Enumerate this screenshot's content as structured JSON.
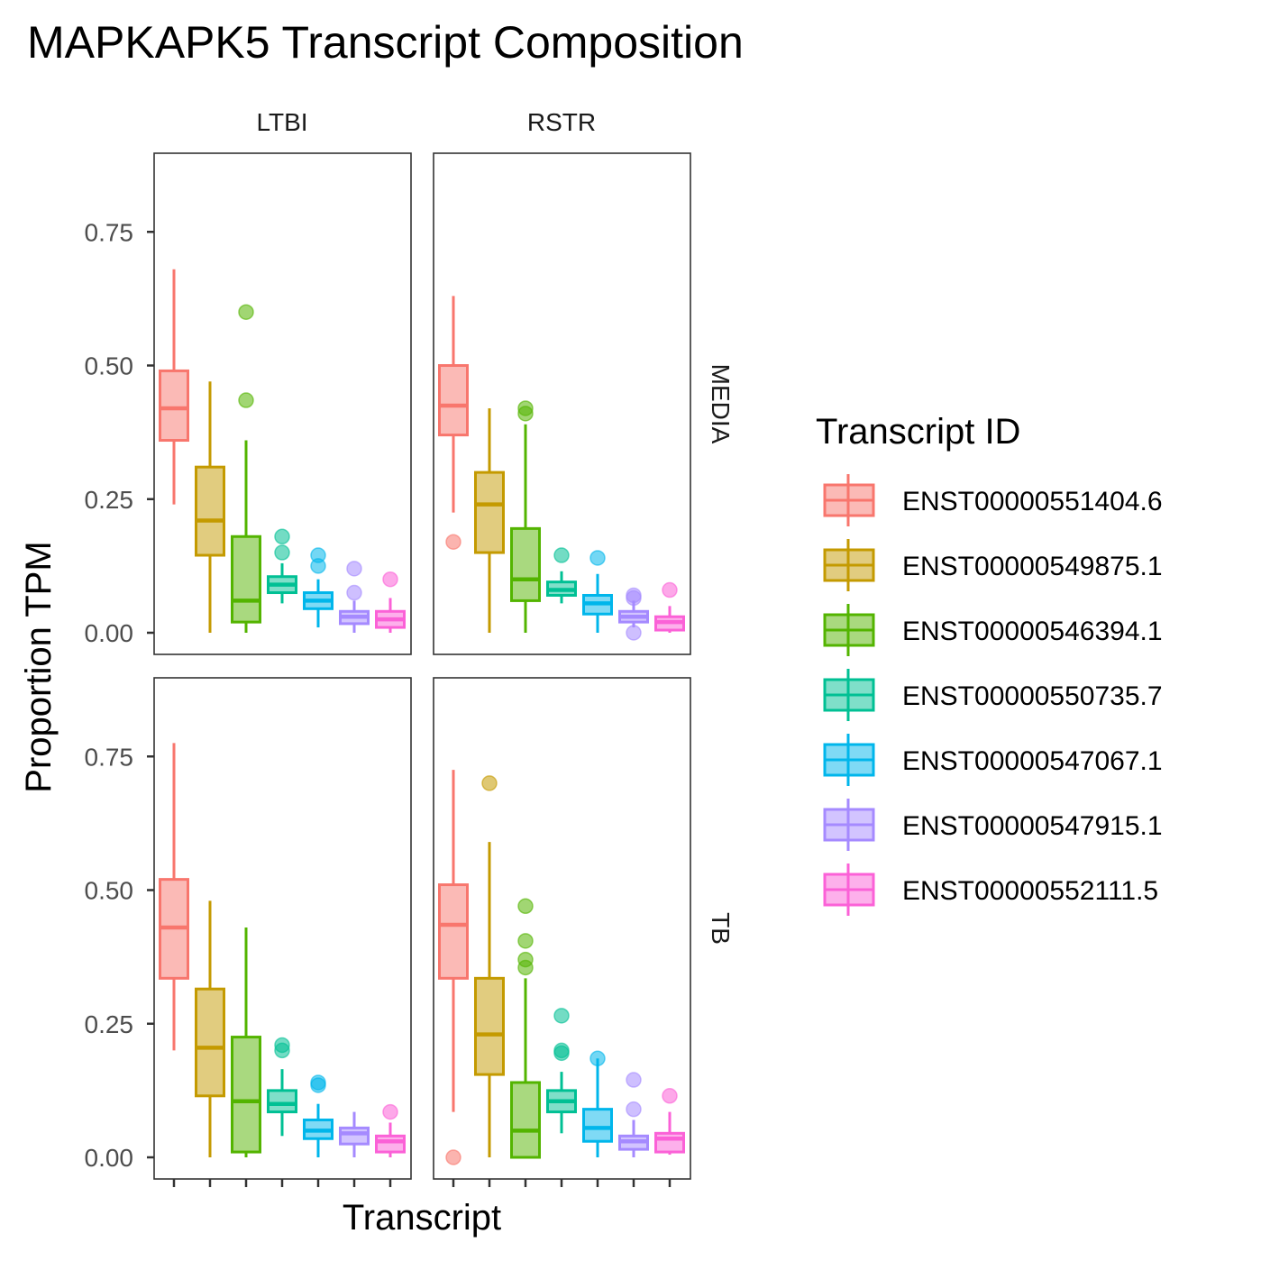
{
  "chart_data": {
    "type": "boxplot",
    "title": "MAPKAPK5 Transcript Composition",
    "xlabel": "Transcript",
    "ylabel": "Proportion TPM",
    "ylim": [
      -0.04,
      0.89
    ],
    "y_ticks": [
      "0.00",
      "0.25",
      "0.50",
      "0.75"
    ],
    "y_tick_values": [
      0,
      0.25,
      0.5,
      0.75
    ],
    "column_facets": [
      "LTBI",
      "RSTR"
    ],
    "row_facets": [
      "MEDIA",
      "TB"
    ],
    "legend": {
      "title": "Transcript ID",
      "position": "right",
      "entries": [
        {
          "label": "ENST00000551404.6",
          "color": "#F8766D"
        },
        {
          "label": "ENST00000549875.1",
          "color": "#C49A00"
        },
        {
          "label": "ENST00000546394.1",
          "color": "#53B400"
        },
        {
          "label": "ENST00000550735.7",
          "color": "#00C094"
        },
        {
          "label": "ENST00000547067.1",
          "color": "#00B6EB"
        },
        {
          "label": "ENST00000547915.1",
          "color": "#A58AFF"
        },
        {
          "label": "ENST00000552111.5",
          "color": "#FB61D7"
        }
      ]
    },
    "panels": [
      {
        "col": 0,
        "row": 0,
        "facet": "LTBI / MEDIA",
        "boxes": [
          {
            "min": 0.24,
            "q1": 0.36,
            "median": 0.42,
            "q3": 0.49,
            "max": 0.68,
            "outliers": []
          },
          {
            "min": 0.0,
            "q1": 0.145,
            "median": 0.21,
            "q3": 0.31,
            "max": 0.47,
            "outliers": []
          },
          {
            "min": 0.0,
            "q1": 0.02,
            "median": 0.06,
            "q3": 0.18,
            "max": 0.36,
            "outliers": [
              0.6,
              0.435
            ]
          },
          {
            "min": 0.055,
            "q1": 0.075,
            "median": 0.09,
            "q3": 0.105,
            "max": 0.13,
            "outliers": [
              0.18,
              0.15
            ]
          },
          {
            "min": 0.01,
            "q1": 0.045,
            "median": 0.06,
            "q3": 0.075,
            "max": 0.1,
            "outliers": [
              0.145,
              0.125
            ]
          },
          {
            "min": 0.0,
            "q1": 0.017,
            "median": 0.03,
            "q3": 0.04,
            "max": 0.06,
            "outliers": [
              0.12,
              0.075
            ]
          },
          {
            "min": 0.0,
            "q1": 0.01,
            "median": 0.025,
            "q3": 0.04,
            "max": 0.065,
            "outliers": [
              0.1
            ]
          }
        ]
      },
      {
        "col": 1,
        "row": 0,
        "facet": "RSTR / MEDIA",
        "boxes": [
          {
            "min": 0.225,
            "q1": 0.37,
            "median": 0.425,
            "q3": 0.5,
            "max": 0.63,
            "outliers": [
              0.17
            ]
          },
          {
            "min": 0.0,
            "q1": 0.15,
            "median": 0.24,
            "q3": 0.3,
            "max": 0.42,
            "outliers": []
          },
          {
            "min": 0.0,
            "q1": 0.06,
            "median": 0.1,
            "q3": 0.195,
            "max": 0.39,
            "outliers": [
              0.42,
              0.41
            ]
          },
          {
            "min": 0.055,
            "q1": 0.07,
            "median": 0.08,
            "q3": 0.095,
            "max": 0.115,
            "outliers": [
              0.145
            ]
          },
          {
            "min": 0.0,
            "q1": 0.035,
            "median": 0.055,
            "q3": 0.07,
            "max": 0.11,
            "outliers": [
              0.14
            ]
          },
          {
            "min": 0.01,
            "q1": 0.02,
            "median": 0.03,
            "q3": 0.04,
            "max": 0.06,
            "outliers": [
              0.07,
              0.065,
              0.0
            ]
          },
          {
            "min": 0.0,
            "q1": 0.005,
            "median": 0.02,
            "q3": 0.03,
            "max": 0.05,
            "outliers": [
              0.08
            ]
          }
        ]
      },
      {
        "col": 0,
        "row": 1,
        "facet": "LTBI / TB",
        "boxes": [
          {
            "min": 0.2,
            "q1": 0.335,
            "median": 0.43,
            "q3": 0.52,
            "max": 0.775,
            "outliers": []
          },
          {
            "min": 0.0,
            "q1": 0.115,
            "median": 0.205,
            "q3": 0.315,
            "max": 0.48,
            "outliers": []
          },
          {
            "min": 0.0,
            "q1": 0.01,
            "median": 0.105,
            "q3": 0.225,
            "max": 0.43,
            "outliers": []
          },
          {
            "min": 0.04,
            "q1": 0.085,
            "median": 0.1,
            "q3": 0.125,
            "max": 0.165,
            "outliers": [
              0.21,
              0.2
            ]
          },
          {
            "min": 0.0,
            "q1": 0.035,
            "median": 0.05,
            "q3": 0.07,
            "max": 0.1,
            "outliers": [
              0.14,
              0.135
            ]
          },
          {
            "min": 0.0,
            "q1": 0.025,
            "median": 0.045,
            "q3": 0.055,
            "max": 0.085,
            "outliers": []
          },
          {
            "min": 0.0,
            "q1": 0.01,
            "median": 0.03,
            "q3": 0.04,
            "max": 0.065,
            "outliers": [
              0.085
            ]
          }
        ]
      },
      {
        "col": 1,
        "row": 1,
        "facet": "RSTR / TB",
        "boxes": [
          {
            "min": 0.085,
            "q1": 0.335,
            "median": 0.435,
            "q3": 0.51,
            "max": 0.725,
            "outliers": [
              0.0
            ]
          },
          {
            "min": 0.0,
            "q1": 0.155,
            "median": 0.23,
            "q3": 0.335,
            "max": 0.59,
            "outliers": [
              0.7
            ]
          },
          {
            "min": 0.0,
            "q1": 0.0,
            "median": 0.05,
            "q3": 0.14,
            "max": 0.335,
            "outliers": [
              0.47,
              0.405,
              0.37,
              0.355
            ]
          },
          {
            "min": 0.045,
            "q1": 0.085,
            "median": 0.105,
            "q3": 0.125,
            "max": 0.16,
            "outliers": [
              0.265,
              0.2,
              0.195
            ]
          },
          {
            "min": 0.0,
            "q1": 0.03,
            "median": 0.055,
            "q3": 0.09,
            "max": 0.185,
            "outliers": [
              0.185
            ]
          },
          {
            "min": 0.0,
            "q1": 0.015,
            "median": 0.03,
            "q3": 0.04,
            "max": 0.07,
            "outliers": [
              0.145,
              0.09
            ]
          },
          {
            "min": 0.005,
            "q1": 0.01,
            "median": 0.035,
            "q3": 0.045,
            "max": 0.085,
            "outliers": [
              0.115
            ]
          }
        ]
      }
    ]
  }
}
